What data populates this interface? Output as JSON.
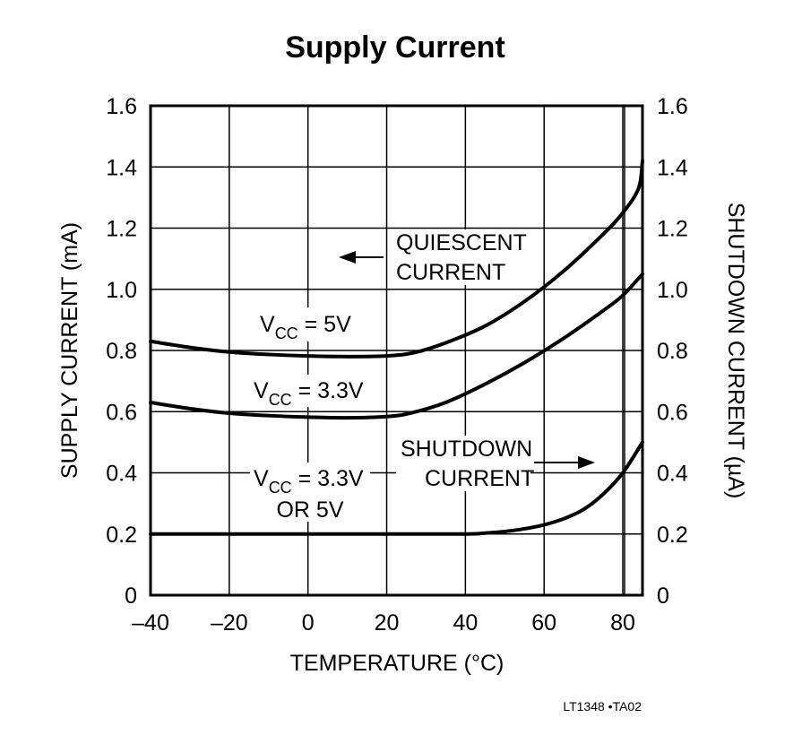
{
  "chart_data": {
    "type": "line",
    "title": "Supply Current",
    "xlabel": "TEMPERATURE (°C)",
    "ylabel_left": "SUPPLY CURRENT (mA)",
    "ylabel_right": "SHUTDOWN CURRENT (µA)",
    "xlim": [
      -40,
      85
    ],
    "ylim": [
      0,
      1.6
    ],
    "x_ticks": [
      -40,
      -20,
      0,
      20,
      40,
      60,
      80
    ],
    "x_tick_labels": [
      "–40",
      "–20",
      "0",
      "20",
      "40",
      "60",
      "80"
    ],
    "y_ticks": [
      0,
      0.2,
      0.4,
      0.6,
      0.8,
      1.0,
      1.2,
      1.4,
      1.6
    ],
    "y_tick_labels": [
      "0",
      "0.2",
      "0.4",
      "0.6",
      "0.8",
      "1.0",
      "1.2",
      "1.4",
      "1.6"
    ],
    "grid": true,
    "series": [
      {
        "x": [
          -40,
          -30,
          -20,
          -10,
          0,
          10,
          20,
          27,
          35,
          45,
          55,
          65,
          75,
          80,
          84,
          85
        ],
        "y": [
          0.83,
          0.81,
          0.795,
          0.787,
          0.782,
          0.78,
          0.782,
          0.793,
          0.825,
          0.88,
          0.96,
          1.06,
          1.18,
          1.25,
          1.33,
          1.42
        ]
      },
      {
        "x": [
          -40,
          -30,
          -20,
          -10,
          0,
          10,
          20,
          26,
          35,
          45,
          55,
          65,
          75,
          80,
          85
        ],
        "y": [
          0.63,
          0.61,
          0.595,
          0.587,
          0.582,
          0.58,
          0.584,
          0.595,
          0.63,
          0.69,
          0.76,
          0.84,
          0.93,
          0.98,
          1.05
        ]
      },
      {
        "x": [
          -40,
          -20,
          0,
          20,
          40,
          45,
          50,
          55,
          60,
          65,
          70,
          75,
          80,
          85
        ],
        "y": [
          0.2,
          0.2,
          0.2,
          0.2,
          0.2,
          0.203,
          0.208,
          0.217,
          0.23,
          0.25,
          0.28,
          0.33,
          0.4,
          0.5
        ]
      }
    ],
    "annotations": {
      "quiescent": [
        "QUIESCENT",
        "CURRENT"
      ],
      "shutdown": [
        "SHUTDOWN",
        "CURRENT"
      ],
      "v5": {
        "main": "V",
        "sub": "CC",
        "rest": " = 5V"
      },
      "v33": {
        "main": "V",
        "sub": "CC",
        "rest": " = 3.3V"
      },
      "vboth": {
        "main": "V",
        "sub": "CC",
        "rest": " = 3.3V",
        "line2": "OR 5V"
      }
    },
    "figure_code": "LT1348 •TA02"
  }
}
